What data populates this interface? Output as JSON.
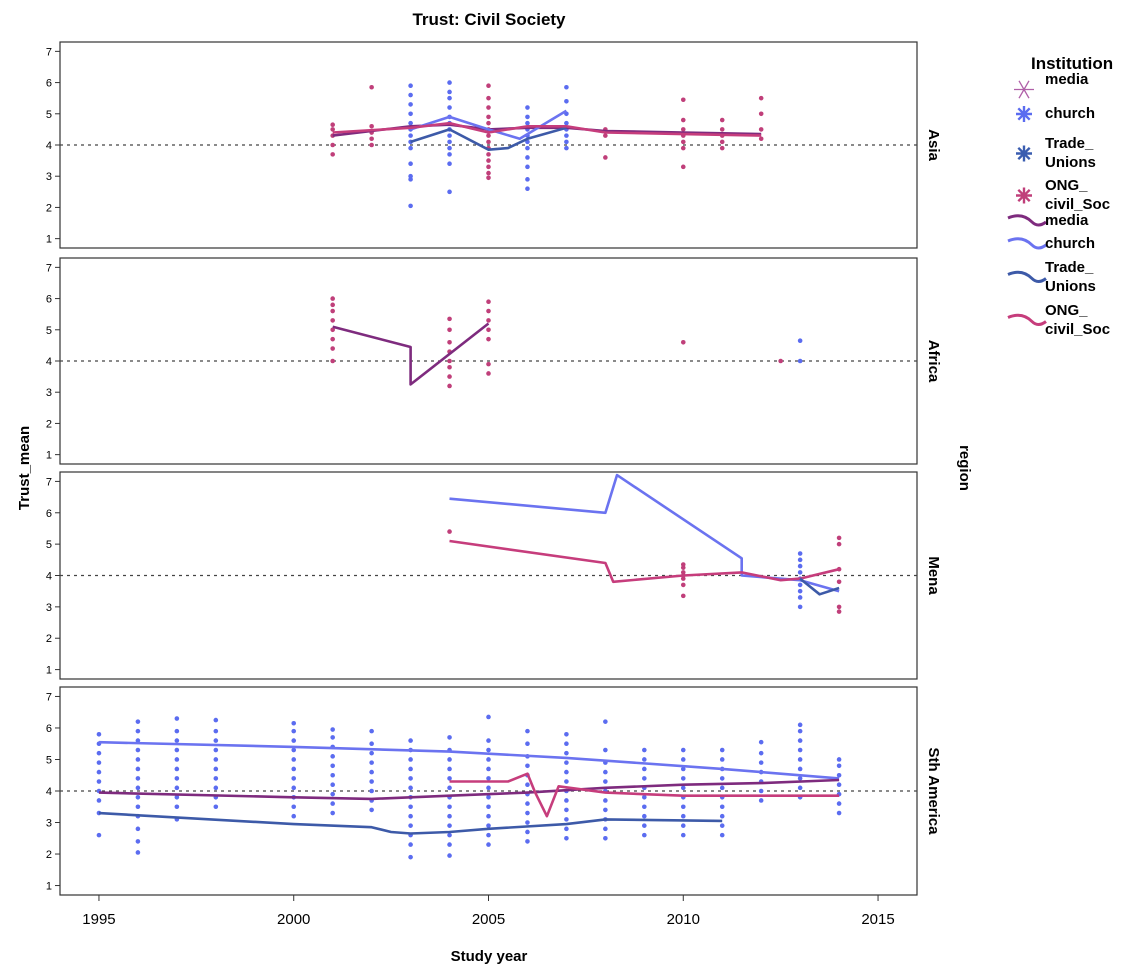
{
  "chart_data": {
    "type": "line",
    "title": "Trust: Civil Society",
    "xlabel": "Study year",
    "ylabel": "Trust_mean",
    "facet_label": "region",
    "xlim": [
      1994,
      2016
    ],
    "ylim": [
      0.7,
      7.3
    ],
    "x_ticks": [
      1995,
      2000,
      2005,
      2010,
      2015
    ],
    "y_ticks": [
      1,
      2,
      3,
      4,
      5,
      6,
      7
    ],
    "reference_line": 4,
    "grid": false,
    "legend": {
      "title": "Institution",
      "placement": "right",
      "entries": [
        {
          "label": "media",
          "kind": "point",
          "color": "#b060a8",
          "symbol": "star-thin"
        },
        {
          "label": "church",
          "kind": "point",
          "color": "#5b6cf0",
          "symbol": "star"
        },
        {
          "label": "Trade_ Unions",
          "kind": "point",
          "color": "#3a5db0",
          "symbol": "star"
        },
        {
          "label": "ONG_ civil_Soc",
          "kind": "point",
          "color": "#c03f7a",
          "symbol": "star"
        },
        {
          "label": "media",
          "kind": "line",
          "color": "#7e2b7e"
        },
        {
          "label": "church",
          "kind": "line",
          "color": "#6b73f0"
        },
        {
          "label": "Trade_ Unions",
          "kind": "line",
          "color": "#3d5aa8"
        },
        {
          "label": "ONG_ civil_Soc",
          "kind": "line",
          "color": "#c63d7c"
        }
      ]
    },
    "colors": {
      "media": "#7e2b7e",
      "church": "#6b73f0",
      "trade_unions": "#3d5aa8",
      "ong": "#c63d7c"
    },
    "panels": [
      {
        "region": "Asia",
        "series": [
          {
            "name": "media",
            "color": "#7e2b7e",
            "x": [
              2001,
              2002,
              2003,
              2004,
              2005,
              2006,
              2007,
              2008,
              2010,
              2012
            ],
            "y": [
              4.3,
              4.45,
              4.6,
              4.65,
              4.5,
              4.55,
              4.55,
              4.45,
              4.4,
              4.35
            ]
          },
          {
            "name": "church",
            "color": "#6b73f0",
            "x": [
              2003,
              2004,
              2005,
              2005.8,
              2007
            ],
            "y": [
              4.5,
              4.9,
              4.5,
              4.2,
              5.1
            ]
          },
          {
            "name": "Trade_ Unions",
            "color": "#3d5aa8",
            "x": [
              2003,
              2004,
              2005,
              2005.5,
              2006,
              2007
            ],
            "y": [
              4.1,
              4.5,
              3.85,
              3.9,
              4.2,
              4.55
            ]
          },
          {
            "name": "ONG_ civil_Soc",
            "color": "#c63d7c",
            "x": [
              2001,
              2003,
              2004,
              2005,
              2006,
              2007,
              2008,
              2010,
              2012
            ],
            "y": [
              4.4,
              4.55,
              4.7,
              4.4,
              4.6,
              4.6,
              4.4,
              4.35,
              4.3
            ]
          }
        ],
        "points": [
          {
            "x": 2001,
            "values": [
              3.7,
              4.0,
              4.3,
              4.5,
              4.65
            ],
            "color": "#c03f7a"
          },
          {
            "x": 2002,
            "values": [
              4.0,
              4.2,
              4.4,
              4.6,
              5.85
            ],
            "color": "#c03f7a"
          },
          {
            "x": 2003,
            "values": [
              2.05,
              2.9,
              3.0,
              3.4,
              3.9,
              4.1,
              4.3,
              4.5,
              4.7,
              5.0,
              5.3,
              5.6,
              5.9
            ],
            "color": "#5b6cf0"
          },
          {
            "x": 2004,
            "values": [
              2.5,
              3.4,
              3.7,
              3.9,
              4.1,
              4.3,
              4.5,
              4.7,
              4.9,
              5.2,
              5.5,
              5.7,
              6.0
            ],
            "color": "#5b6cf0"
          },
          {
            "x": 2005,
            "values": [
              2.95,
              3.1,
              3.3,
              3.5,
              3.7,
              3.9,
              4.1,
              4.3,
              4.5,
              4.7,
              4.9,
              5.2,
              5.5,
              5.9
            ],
            "color": "#c03f7a"
          },
          {
            "x": 2006,
            "values": [
              2.6,
              2.9,
              3.3,
              3.6,
              3.9,
              4.1,
              4.3,
              4.5,
              4.7,
              4.9,
              5.2
            ],
            "color": "#5b6cf0"
          },
          {
            "x": 2007,
            "values": [
              3.9,
              4.1,
              4.3,
              4.5,
              4.7,
              5.0,
              5.4,
              5.85
            ],
            "color": "#5b6cf0"
          },
          {
            "x": 2008,
            "values": [
              3.6,
              4.3,
              4.5
            ],
            "color": "#c03f7a"
          },
          {
            "x": 2010,
            "values": [
              3.3,
              3.9,
              4.1,
              4.3,
              4.5,
              4.8,
              5.45
            ],
            "color": "#c03f7a"
          },
          {
            "x": 2011,
            "values": [
              3.9,
              4.1,
              4.3,
              4.5,
              4.8
            ],
            "color": "#c03f7a"
          },
          {
            "x": 2012,
            "values": [
              4.2,
              4.5,
              5.0,
              5.5
            ],
            "color": "#c03f7a"
          }
        ]
      },
      {
        "region": "Africa",
        "series": [
          {
            "name": "media",
            "color": "#7e2b7e",
            "x": [
              2001,
              2003,
              2003,
              2005
            ],
            "y": [
              5.1,
              4.45,
              3.25,
              5.2
            ]
          }
        ],
        "points": [
          {
            "x": 2001,
            "values": [
              4.0,
              4.4,
              4.7,
              5.0,
              5.3,
              5.6,
              5.8,
              6.0
            ],
            "color": "#c03f7a"
          },
          {
            "x": 2004,
            "values": [
              3.2,
              3.5,
              3.8,
              4.0,
              4.3,
              4.6,
              5.0,
              5.35
            ],
            "color": "#c03f7a"
          },
          {
            "x": 2005,
            "values": [
              3.6,
              3.9,
              4.7,
              5.0,
              5.3,
              5.6,
              5.9
            ],
            "color": "#c03f7a"
          },
          {
            "x": 2010,
            "values": [
              4.6
            ],
            "color": "#c03f7a"
          },
          {
            "x": 2012.5,
            "values": [
              4.0
            ],
            "color": "#c03f7a"
          },
          {
            "x": 2013,
            "values": [
              4.0,
              4.65
            ],
            "color": "#5b6cf0"
          }
        ]
      },
      {
        "region": "Mena",
        "series": [
          {
            "name": "church",
            "color": "#6b73f0",
            "x": [
              2004,
              2008,
              2008.3,
              2011.5,
              2011.5,
              2013,
              2014
            ],
            "y": [
              6.45,
              6.0,
              7.2,
              4.55,
              4.0,
              3.85,
              3.5
            ]
          },
          {
            "name": "ONG_ civil_Soc",
            "color": "#c63d7c",
            "x": [
              2004,
              2008,
              2008.2,
              2010,
              2011.5,
              2012.5,
              2013,
              2014
            ],
            "y": [
              5.1,
              4.4,
              3.8,
              4.0,
              4.1,
              3.85,
              3.9,
              4.2
            ]
          },
          {
            "name": "Trade_ Unions",
            "color": "#3d5aa8",
            "x": [
              2013,
              2013.5,
              2014
            ],
            "y": [
              3.9,
              3.4,
              3.6
            ]
          }
        ],
        "points": [
          {
            "x": 2004,
            "values": [
              5.4
            ],
            "color": "#c03f7a"
          },
          {
            "x": 2010,
            "values": [
              3.35,
              3.7,
              3.9,
              4.0,
              4.1,
              4.25,
              4.35
            ],
            "color": "#c03f7a"
          },
          {
            "x": 2013,
            "values": [
              3.0,
              3.3,
              3.5,
              3.7,
              3.9,
              4.1,
              4.3,
              4.5,
              4.7
            ],
            "color": "#5b6cf0"
          },
          {
            "x": 2014,
            "values": [
              2.85,
              3.0,
              3.8,
              4.2,
              5.0,
              5.2
            ],
            "color": "#c03f7a"
          }
        ]
      },
      {
        "region": "Sth America",
        "series": [
          {
            "name": "church",
            "color": "#6b73f0",
            "x": [
              1995,
              2000,
              2004,
              2007,
              2011,
              2014
            ],
            "y": [
              5.55,
              5.4,
              5.25,
              5.05,
              4.7,
              4.4
            ]
          },
          {
            "name": "media",
            "color": "#7e2b7e",
            "x": [
              1995,
              2000,
              2002,
              2004,
              2006,
              2008,
              2010,
              2012,
              2014
            ],
            "y": [
              3.95,
              3.8,
              3.75,
              3.85,
              3.95,
              4.1,
              4.2,
              4.25,
              4.35
            ]
          },
          {
            "name": "Trade_ Unions",
            "color": "#3d5aa8",
            "x": [
              1995,
              2000,
              2002,
              2002.5,
              2003,
              2004,
              2005,
              2007,
              2008,
              2011
            ],
            "y": [
              3.3,
              2.95,
              2.85,
              2.7,
              2.65,
              2.7,
              2.8,
              2.95,
              3.1,
              3.05
            ]
          },
          {
            "name": "ONG_ civil_Soc",
            "color": "#c63d7c",
            "x": [
              2004,
              2005.5,
              2006,
              2006.2,
              2006.5,
              2006.8,
              2008,
              2009,
              2010,
              2014
            ],
            "y": [
              4.3,
              4.3,
              4.55,
              3.95,
              3.2,
              4.15,
              3.95,
              3.9,
              3.85,
              3.85
            ]
          }
        ],
        "points": [
          {
            "x": 1995,
            "values": [
              2.6,
              3.3,
              3.7,
              4.0,
              4.3,
              4.6,
              4.9,
              5.2,
              5.5,
              5.8
            ],
            "color": "#5b6cf0"
          },
          {
            "x": 1996,
            "values": [
              2.05,
              2.4,
              2.8,
              3.2,
              3.5,
              3.8,
              4.1,
              4.4,
              4.7,
              5.0,
              5.3,
              5.6,
              5.9,
              6.2
            ],
            "color": "#5b6cf0"
          },
          {
            "x": 1997,
            "values": [
              3.1,
              3.5,
              3.8,
              4.1,
              4.4,
              4.7,
              5.0,
              5.3,
              5.6,
              5.9,
              6.3
            ],
            "color": "#5b6cf0"
          },
          {
            "x": 1998,
            "values": [
              3.5,
              3.8,
              4.1,
              4.4,
              4.7,
              5.0,
              5.3,
              5.6,
              5.9,
              6.25
            ],
            "color": "#5b6cf0"
          },
          {
            "x": 2000,
            "values": [
              3.2,
              3.5,
              3.8,
              4.1,
              4.4,
              4.7,
              5.0,
              5.3,
              5.6,
              5.9,
              6.15
            ],
            "color": "#5b6cf0"
          },
          {
            "x": 2001,
            "values": [
              3.3,
              3.6,
              3.9,
              4.2,
              4.5,
              4.8,
              5.1,
              5.4,
              5.7,
              5.95
            ],
            "color": "#5b6cf0"
          },
          {
            "x": 2002,
            "values": [
              3.4,
              3.7,
              4.0,
              4.3,
              4.6,
              4.9,
              5.2,
              5.5,
              5.9
            ],
            "color": "#5b6cf0"
          },
          {
            "x": 2003,
            "values": [
              1.9,
              2.3,
              2.6,
              2.9,
              3.2,
              3.5,
              3.8,
              4.1,
              4.4,
              4.7,
              5.0,
              5.3,
              5.6
            ],
            "color": "#5b6cf0"
          },
          {
            "x": 2004,
            "values": [
              1.95,
              2.3,
              2.6,
              2.9,
              3.2,
              3.5,
              3.8,
              4.1,
              4.4,
              4.7,
              5.0,
              5.3,
              5.7
            ],
            "color": "#5b6cf0"
          },
          {
            "x": 2005,
            "values": [
              2.3,
              2.6,
              2.9,
              3.2,
              3.5,
              3.8,
              4.1,
              4.4,
              4.7,
              5.0,
              5.3,
              5.6,
              6.35
            ],
            "color": "#5b6cf0"
          },
          {
            "x": 2006,
            "values": [
              2.4,
              2.7,
              3.0,
              3.3,
              3.6,
              3.9,
              4.2,
              4.5,
              4.8,
              5.1,
              5.5,
              5.9
            ],
            "color": "#5b6cf0"
          },
          {
            "x": 2007,
            "values": [
              2.5,
              2.8,
              3.1,
              3.4,
              3.7,
              4.0,
              4.3,
              4.6,
              4.9,
              5.2,
              5.5,
              5.8
            ],
            "color": "#5b6cf0"
          },
          {
            "x": 2008,
            "values": [
              2.5,
              2.8,
              3.1,
              3.4,
              3.7,
              4.0,
              4.3,
              4.6,
              4.9,
              5.3,
              6.2
            ],
            "color": "#5b6cf0"
          },
          {
            "x": 2009,
            "values": [
              2.6,
              2.9,
              3.2,
              3.5,
              3.8,
              4.1,
              4.4,
              4.7,
              5.0,
              5.3
            ],
            "color": "#5b6cf0"
          },
          {
            "x": 2010,
            "values": [
              2.6,
              2.9,
              3.2,
              3.5,
              3.8,
              4.1,
              4.4,
              4.7,
              5.0,
              5.3
            ],
            "color": "#5b6cf0"
          },
          {
            "x": 2011,
            "values": [
              2.6,
              2.9,
              3.2,
              3.5,
              3.8,
              4.1,
              4.4,
              4.7,
              5.0,
              5.3
            ],
            "color": "#5b6cf0"
          },
          {
            "x": 2012,
            "values": [
              3.7,
              4.0,
              4.3,
              4.6,
              4.9,
              5.2,
              5.55
            ],
            "color": "#5b6cf0"
          },
          {
            "x": 2013,
            "values": [
              3.8,
              4.1,
              4.4,
              4.7,
              5.0,
              5.3,
              5.6,
              5.9,
              6.1
            ],
            "color": "#5b6cf0"
          },
          {
            "x": 2014,
            "values": [
              3.3,
              3.6,
              3.9,
              4.2,
              4.5,
              4.8,
              5.0
            ],
            "color": "#5b6cf0"
          }
        ]
      }
    ]
  }
}
